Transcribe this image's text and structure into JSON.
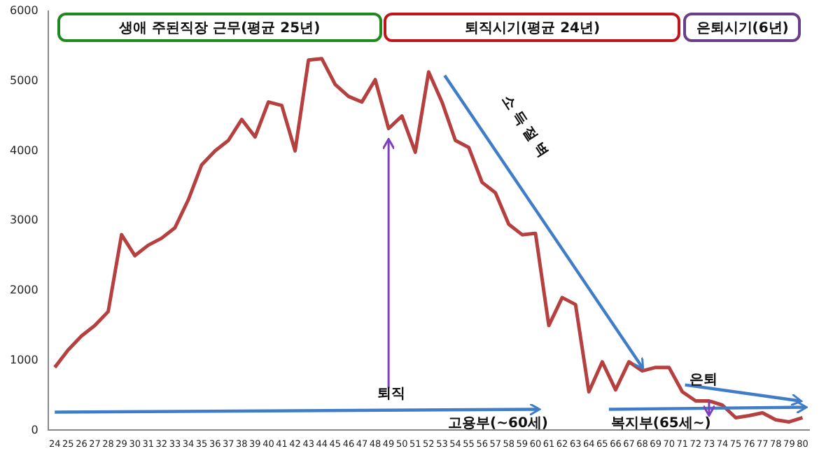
{
  "chart_data": {
    "type": "line",
    "categories": [
      "24",
      "25",
      "26",
      "27",
      "28",
      "29",
      "30",
      "31",
      "32",
      "33",
      "34",
      "35",
      "36",
      "37",
      "38",
      "39",
      "40",
      "41",
      "42",
      "43",
      "44",
      "45",
      "46",
      "47",
      "48",
      "49",
      "50",
      "51",
      "52",
      "53",
      "54",
      "55",
      "56",
      "57",
      "58",
      "59",
      "60",
      "61",
      "62",
      "63",
      "64",
      "65",
      "66",
      "67",
      "68",
      "69",
      "70",
      "71",
      "72",
      "73",
      "74",
      "75",
      "76",
      "77",
      "78",
      "79",
      "80"
    ],
    "series": [
      {
        "color": "#b5403f",
        "values": [
          900,
          1150,
          1350,
          1500,
          1700,
          2800,
          2500,
          2650,
          2750,
          2900,
          3300,
          3800,
          4000,
          4150,
          4450,
          4200,
          4700,
          4650,
          4000,
          5300,
          5320,
          4950,
          4780,
          4700,
          5020,
          4320,
          4500,
          3980,
          5130,
          4700,
          4150,
          4050,
          3550,
          3400,
          2950,
          2800,
          2820,
          1500,
          1900,
          1800,
          550,
          980,
          580,
          980,
          850,
          900,
          900,
          550,
          420,
          420,
          360,
          180,
          210,
          250,
          150,
          120,
          180
        ]
      }
    ],
    "ylim": [
      0,
      6000
    ],
    "yticks": [
      0,
      1000,
      2000,
      3000,
      4000,
      5000,
      6000
    ],
    "grid": false,
    "marker": "none",
    "line_style": "solid",
    "annotations": [
      "생애 주된직장 근무(평균 25년)",
      "퇴직시기(평균 24년)",
      "은퇴시기(6년)",
      "소 득 절 벽",
      "퇴직",
      "고용부(~60세)",
      "은퇴",
      "복지부(65세~)"
    ]
  }
}
